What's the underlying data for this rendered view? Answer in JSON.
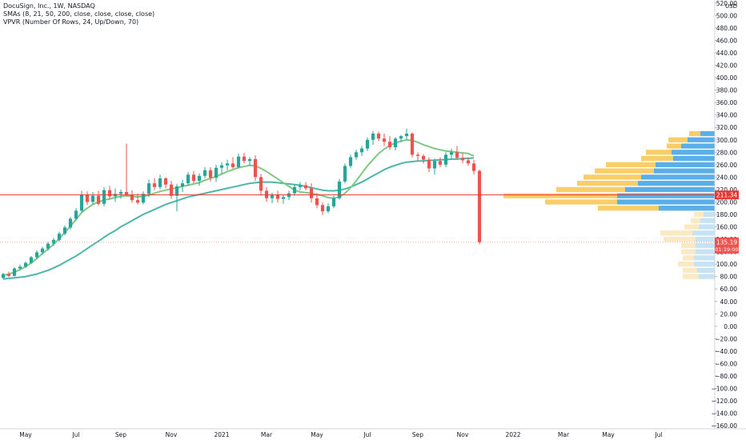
{
  "header": {
    "title": "DocuSign, Inc., 1W, NASDAQ",
    "sma_label": "SMAs (8, 21, 50, 200, close, close, close, close)",
    "vpvr_label": "VPVR (Number Of Rows, 24, Up/Down, 70)"
  },
  "chart_data": {
    "type": "candlestick",
    "currency": "USD",
    "ylim": [
      -165,
      525
    ],
    "y_ticks": [
      520,
      500,
      480,
      460,
      440,
      420,
      400,
      380,
      360,
      340,
      320,
      300,
      280,
      260,
      240,
      220,
      200,
      180,
      160,
      140,
      120,
      100,
      80,
      60,
      40,
      20,
      0,
      -20,
      -40,
      -60,
      -80,
      -100,
      -120,
      -140,
      -160
    ],
    "y_tick_labels": [
      "520.00",
      "500.00",
      "480.00",
      "460.00",
      "440.00",
      "420.00",
      "400.00",
      "380.00",
      "360.00",
      "340.00",
      "320.00",
      "300.00",
      "280.00",
      "260.00",
      "240.00",
      "220.00",
      "200.00",
      "180.00",
      "160.00",
      "140.00",
      "120.00",
      "100.00",
      "80.00",
      "60.00",
      "40.00",
      "20.00",
      "0.00",
      "−20.00",
      "−40.00",
      "−60.00",
      "−80.00",
      "−100.00",
      "−120.00",
      "−140.00",
      "−160.00"
    ],
    "x_ticks": [
      {
        "week": 4,
        "label": "May"
      },
      {
        "week": 13,
        "label": "Jul"
      },
      {
        "week": 21,
        "label": "Sep"
      },
      {
        "week": 30,
        "label": "Nov"
      },
      {
        "week": 39,
        "label": "2021"
      },
      {
        "week": 47,
        "label": "Mar"
      },
      {
        "week": 56,
        "label": "May"
      },
      {
        "week": 65,
        "label": "Jul"
      },
      {
        "week": 74,
        "label": "Sep"
      },
      {
        "week": 82,
        "label": "Nov"
      },
      {
        "week": 91,
        "label": "2022"
      },
      {
        "week": 100,
        "label": "Mar"
      },
      {
        "week": 108,
        "label": "May"
      },
      {
        "week": 117,
        "label": "Jul"
      }
    ],
    "candles": [
      {
        "o": 78,
        "h": 86,
        "l": 76,
        "c": 84
      },
      {
        "o": 84,
        "h": 88,
        "l": 79,
        "c": 81
      },
      {
        "o": 81,
        "h": 95,
        "l": 80,
        "c": 93
      },
      {
        "o": 93,
        "h": 99,
        "l": 90,
        "c": 96
      },
      {
        "o": 96,
        "h": 104,
        "l": 94,
        "c": 102
      },
      {
        "o": 102,
        "h": 113,
        "l": 100,
        "c": 111
      },
      {
        "o": 111,
        "h": 122,
        "l": 108,
        "c": 119
      },
      {
        "o": 119,
        "h": 128,
        "l": 115,
        "c": 125
      },
      {
        "o": 125,
        "h": 136,
        "l": 122,
        "c": 133
      },
      {
        "o": 133,
        "h": 142,
        "l": 129,
        "c": 139
      },
      {
        "o": 139,
        "h": 152,
        "l": 136,
        "c": 149
      },
      {
        "o": 149,
        "h": 162,
        "l": 146,
        "c": 159
      },
      {
        "o": 159,
        "h": 176,
        "l": 156,
        "c": 173
      },
      {
        "o": 173,
        "h": 190,
        "l": 170,
        "c": 186
      },
      {
        "o": 186,
        "h": 218,
        "l": 183,
        "c": 212
      },
      {
        "o": 212,
        "h": 217,
        "l": 195,
        "c": 200
      },
      {
        "o": 200,
        "h": 216,
        "l": 196,
        "c": 210
      },
      {
        "o": 210,
        "h": 218,
        "l": 194,
        "c": 197
      },
      {
        "o": 197,
        "h": 224,
        "l": 193,
        "c": 219
      },
      {
        "o": 219,
        "h": 226,
        "l": 204,
        "c": 209
      },
      {
        "o": 209,
        "h": 222,
        "l": 200,
        "c": 213
      },
      {
        "o": 213,
        "h": 220,
        "l": 205,
        "c": 216
      },
      {
        "o": 216,
        "h": 294,
        "l": 210,
        "c": 212
      },
      {
        "o": 212,
        "h": 219,
        "l": 199,
        "c": 203
      },
      {
        "o": 203,
        "h": 214,
        "l": 196,
        "c": 199
      },
      {
        "o": 199,
        "h": 217,
        "l": 196,
        "c": 213
      },
      {
        "o": 213,
        "h": 236,
        "l": 208,
        "c": 230
      },
      {
        "o": 230,
        "h": 238,
        "l": 219,
        "c": 224
      },
      {
        "o": 224,
        "h": 244,
        "l": 220,
        "c": 238
      },
      {
        "o": 238,
        "h": 240,
        "l": 222,
        "c": 228
      },
      {
        "o": 228,
        "h": 234,
        "l": 205,
        "c": 210
      },
      {
        "o": 210,
        "h": 229,
        "l": 185,
        "c": 225
      },
      {
        "o": 225,
        "h": 236,
        "l": 216,
        "c": 230
      },
      {
        "o": 230,
        "h": 248,
        "l": 226,
        "c": 244
      },
      {
        "o": 244,
        "h": 250,
        "l": 230,
        "c": 234
      },
      {
        "o": 234,
        "h": 246,
        "l": 226,
        "c": 242
      },
      {
        "o": 242,
        "h": 256,
        "l": 238,
        "c": 251
      },
      {
        "o": 251,
        "h": 256,
        "l": 233,
        "c": 239
      },
      {
        "o": 239,
        "h": 260,
        "l": 232,
        "c": 255
      },
      {
        "o": 255,
        "h": 264,
        "l": 245,
        "c": 259
      },
      {
        "o": 259,
        "h": 268,
        "l": 251,
        "c": 262
      },
      {
        "o": 262,
        "h": 272,
        "l": 253,
        "c": 256
      },
      {
        "o": 256,
        "h": 278,
        "l": 254,
        "c": 273
      },
      {
        "o": 273,
        "h": 279,
        "l": 262,
        "c": 266
      },
      {
        "o": 266,
        "h": 272,
        "l": 258,
        "c": 269
      },
      {
        "o": 269,
        "h": 275,
        "l": 234,
        "c": 240
      },
      {
        "o": 240,
        "h": 245,
        "l": 210,
        "c": 218
      },
      {
        "o": 218,
        "h": 224,
        "l": 200,
        "c": 206
      },
      {
        "o": 206,
        "h": 215,
        "l": 198,
        "c": 212
      },
      {
        "o": 212,
        "h": 218,
        "l": 199,
        "c": 205
      },
      {
        "o": 205,
        "h": 212,
        "l": 197,
        "c": 208
      },
      {
        "o": 208,
        "h": 218,
        "l": 203,
        "c": 214
      },
      {
        "o": 214,
        "h": 228,
        "l": 210,
        "c": 224
      },
      {
        "o": 224,
        "h": 232,
        "l": 219,
        "c": 227
      },
      {
        "o": 227,
        "h": 232,
        "l": 219,
        "c": 222
      },
      {
        "o": 222,
        "h": 230,
        "l": 199,
        "c": 206
      },
      {
        "o": 206,
        "h": 214,
        "l": 190,
        "c": 195
      },
      {
        "o": 195,
        "h": 199,
        "l": 179,
        "c": 185
      },
      {
        "o": 185,
        "h": 198,
        "l": 182,
        "c": 193
      },
      {
        "o": 193,
        "h": 210,
        "l": 190,
        "c": 206
      },
      {
        "o": 206,
        "h": 237,
        "l": 204,
        "c": 233
      },
      {
        "o": 233,
        "h": 262,
        "l": 230,
        "c": 258
      },
      {
        "o": 258,
        "h": 276,
        "l": 254,
        "c": 272
      },
      {
        "o": 272,
        "h": 284,
        "l": 268,
        "c": 280
      },
      {
        "o": 280,
        "h": 290,
        "l": 274,
        "c": 286
      },
      {
        "o": 286,
        "h": 304,
        "l": 282,
        "c": 300
      },
      {
        "o": 300,
        "h": 314,
        "l": 292,
        "c": 310
      },
      {
        "o": 310,
        "h": 313,
        "l": 298,
        "c": 302
      },
      {
        "o": 302,
        "h": 310,
        "l": 290,
        "c": 297
      },
      {
        "o": 297,
        "h": 306,
        "l": 284,
        "c": 288
      },
      {
        "o": 288,
        "h": 304,
        "l": 283,
        "c": 302
      },
      {
        "o": 302,
        "h": 308,
        "l": 296,
        "c": 306
      },
      {
        "o": 306,
        "h": 318,
        "l": 300,
        "c": 310
      },
      {
        "o": 310,
        "h": 312,
        "l": 272,
        "c": 276
      },
      {
        "o": 276,
        "h": 280,
        "l": 266,
        "c": 274
      },
      {
        "o": 274,
        "h": 277,
        "l": 262,
        "c": 268
      },
      {
        "o": 268,
        "h": 272,
        "l": 248,
        "c": 254
      },
      {
        "o": 254,
        "h": 270,
        "l": 244,
        "c": 266
      },
      {
        "o": 266,
        "h": 272,
        "l": 256,
        "c": 260
      },
      {
        "o": 260,
        "h": 280,
        "l": 256,
        "c": 276
      },
      {
        "o": 276,
        "h": 286,
        "l": 270,
        "c": 280
      },
      {
        "o": 280,
        "h": 290,
        "l": 268,
        "c": 271
      },
      {
        "o": 271,
        "h": 278,
        "l": 262,
        "c": 267
      },
      {
        "o": 267,
        "h": 272,
        "l": 258,
        "c": 262
      },
      {
        "o": 262,
        "h": 268,
        "l": 244,
        "c": 250
      },
      {
        "o": 250,
        "h": 252,
        "l": 132,
        "c": 135
      }
    ],
    "sma_fast": [
      82,
      84,
      87,
      91,
      96,
      102,
      109,
      117,
      124,
      132,
      141,
      151,
      161,
      172,
      183,
      190,
      196,
      200,
      203,
      205,
      207,
      209,
      210,
      209,
      208,
      209,
      211,
      214,
      217,
      219,
      221,
      223,
      225,
      227,
      229,
      231,
      235,
      238,
      241,
      245,
      249,
      252,
      255,
      257,
      259,
      258,
      254,
      249,
      243,
      237,
      231,
      225,
      219,
      216,
      215,
      214,
      212,
      210,
      207,
      206,
      208,
      214,
      223,
      234,
      246,
      258,
      268,
      278,
      285,
      291,
      295,
      298,
      300,
      299,
      296,
      292,
      289,
      286,
      284,
      282,
      281,
      280,
      279,
      278,
      274
    ],
    "sma_slow": [
      76,
      77,
      78,
      79,
      80,
      82,
      84,
      87,
      90,
      94,
      98,
      103,
      108,
      113,
      119,
      125,
      131,
      137,
      143,
      149,
      154,
      160,
      165,
      170,
      175,
      180,
      184,
      188,
      192,
      196,
      199,
      202,
      205,
      208,
      210,
      212,
      214,
      216,
      218,
      220,
      222,
      224,
      226,
      228,
      230,
      231,
      232,
      232,
      232,
      231,
      230,
      229,
      228,
      227,
      225,
      223,
      221,
      219,
      218,
      218,
      219,
      221,
      224,
      228,
      232,
      237,
      242,
      247,
      252,
      256,
      259,
      262,
      264,
      265,
      266,
      266,
      267,
      267,
      268,
      268,
      269,
      269,
      270,
      270,
      271
    ],
    "volume_profile": [
      {
        "p": 310,
        "up": 0.07,
        "down": 0.09
      },
      {
        "p": 300,
        "up": 0.12,
        "down": 0.17
      },
      {
        "p": 290,
        "up": 0.09,
        "down": 0.21
      },
      {
        "p": 280,
        "up": 0.16,
        "down": 0.27
      },
      {
        "p": 270,
        "up": 0.2,
        "down": 0.26
      },
      {
        "p": 260,
        "up": 0.31,
        "down": 0.37
      },
      {
        "p": 250,
        "up": 0.37,
        "down": 0.38
      },
      {
        "p": 240,
        "up": 0.36,
        "down": 0.46
      },
      {
        "p": 230,
        "up": 0.38,
        "down": 0.48
      },
      {
        "p": 220,
        "up": 0.43,
        "down": 0.56
      },
      {
        "p": 210,
        "up": 0.71,
        "down": 0.61
      },
      {
        "p": 200,
        "up": 0.45,
        "down": 0.61
      },
      {
        "p": 190,
        "up": 0.38,
        "down": 0.35
      },
      {
        "p": 180,
        "up": 0.06,
        "down": 0.07
      },
      {
        "p": 170,
        "up": 0.06,
        "down": 0.09
      },
      {
        "p": 160,
        "up": 0.09,
        "down": 0.1
      },
      {
        "p": 150,
        "up": 0.2,
        "down": 0.14
      },
      {
        "p": 140,
        "up": 0.2,
        "down": 0.12
      },
      {
        "p": 130,
        "up": 0.09,
        "down": 0.12
      },
      {
        "p": 120,
        "up": 0.09,
        "down": 0.12
      },
      {
        "p": 110,
        "up": 0.07,
        "down": 0.13
      },
      {
        "p": 100,
        "up": 0.1,
        "down": 0.13
      },
      {
        "p": 90,
        "up": 0.09,
        "down": 0.11
      },
      {
        "p": 80,
        "up": 0.1,
        "down": 0.1
      }
    ],
    "poc_price": 211.34,
    "poc_label": "211.34",
    "last_price": 135.19,
    "last_label": "135.19",
    "countdown_label": "01:19:00",
    "colors": {
      "up": "#26a69a",
      "down": "#ef5350",
      "sma_fast": "#81c784",
      "sma_slow": "#4db6ac",
      "vp_up": "#f9cd67",
      "vp_down": "#5aafe8",
      "vp_up_faint": "#fbe9c2",
      "vp_down_faint": "#c6e3f6",
      "poc": "#e53935"
    }
  }
}
